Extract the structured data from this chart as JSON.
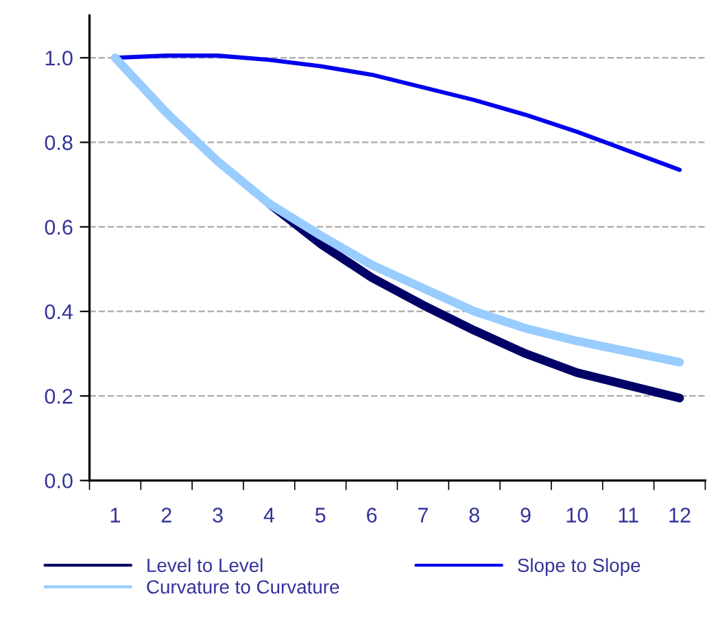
{
  "chart_data": {
    "type": "line",
    "categories": [
      "1",
      "2",
      "3",
      "4",
      "5",
      "6",
      "7",
      "8",
      "9",
      "10",
      "11",
      "12"
    ],
    "series": [
      {
        "name": "Level to Level",
        "color": "#000066",
        "values": [
          null,
          null,
          null,
          0.655,
          0.56,
          0.48,
          0.415,
          0.355,
          0.3,
          0.255,
          0.225,
          0.195
        ]
      },
      {
        "name": "Slope to Slope",
        "color": "#0000ee",
        "values": [
          1.0,
          1.005,
          1.005,
          0.995,
          0.98,
          0.96,
          0.93,
          0.9,
          0.865,
          0.825,
          0.78,
          0.735
        ]
      },
      {
        "name": "Curvature to Curvature",
        "color": "#99ccff",
        "values": [
          1.0,
          0.87,
          0.755,
          0.655,
          0.58,
          0.51,
          0.455,
          0.4,
          0.36,
          0.33,
          0.305,
          0.28
        ]
      }
    ],
    "ylim": [
      0,
      1.1
    ],
    "yticks": [
      {
        "value": 0,
        "label": "0.0"
      },
      0.2,
      0.4,
      0.6,
      0.8,
      {
        "value": 1.0,
        "label": "1.0"
      }
    ],
    "grid": "y",
    "legend": "bottom",
    "marker": "none",
    "line_style": "solid"
  }
}
